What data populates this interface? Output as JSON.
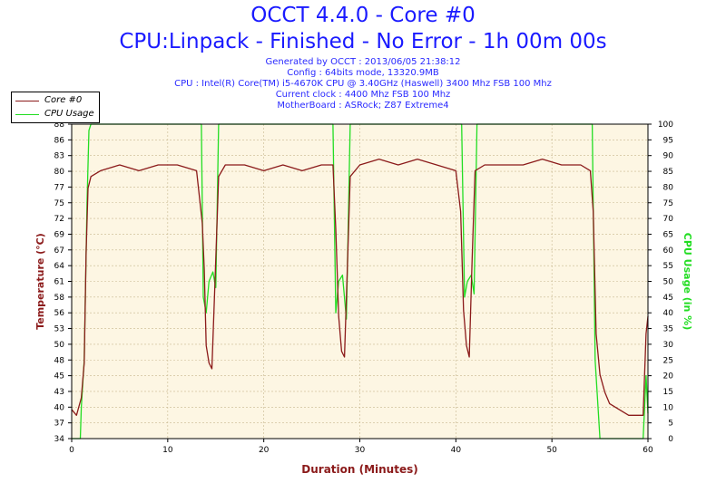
{
  "header": {
    "title": "OCCT 4.4.0 - Core #0",
    "subtitle": "CPU:Linpack - Finished - No Error - 1h 00m 00s",
    "info": [
      "Generated by OCCT : 2013/06/05 21:38:12",
      "Config : 64bits mode, 13320.9MB",
      "CPU : Intel(R) Core(TM) i5-4670K CPU @ 3.40GHz (Haswell) 3400 Mhz FSB 100 Mhz",
      "Current clock : 4400 Mhz FSB 100 Mhz",
      "MotherBoard : ASRock; Z87 Extreme4"
    ]
  },
  "colors": {
    "temperature": "#8b1a1a",
    "cpu_usage": "#22dd22",
    "plot_bg": "#fdf6e3",
    "grid": "#c8b890",
    "title": "#1a1aff"
  },
  "chart_data": {
    "type": "line",
    "title": "OCCT 4.4.0 - Core #0",
    "xlabel": "Duration (Minutes)",
    "ylabel": "Temperature (°C)",
    "y2label": "CPU Usage (in %)",
    "xlim": [
      0,
      60
    ],
    "ylim": [
      34,
      88
    ],
    "y2lim": [
      0,
      100
    ],
    "grid": true,
    "legend_position": "top-left",
    "x_ticks": [
      "0",
      "10",
      "20",
      "30",
      "40",
      "50",
      "60"
    ],
    "y_ticks": [
      "34",
      "37",
      "40",
      "43",
      "45",
      "48",
      "50",
      "53",
      "56",
      "58",
      "61",
      "64",
      "67",
      "69",
      "72",
      "75",
      "77",
      "80",
      "83",
      "86",
      "88"
    ],
    "y2_ticks": [
      "0",
      "5",
      "10",
      "15",
      "20",
      "25",
      "30",
      "35",
      "40",
      "45",
      "50",
      "55",
      "60",
      "65",
      "70",
      "75",
      "80",
      "85",
      "90",
      "95",
      "100"
    ],
    "series": [
      {
        "name": "Core #0",
        "axis": "left",
        "x": [
          0,
          0.5,
          1.0,
          1.3,
          1.5,
          1.7,
          2.0,
          3,
          5,
          7,
          9,
          11,
          13,
          13.6,
          13.8,
          14.0,
          14.3,
          14.6,
          14.9,
          15.3,
          16,
          18,
          20,
          22,
          24,
          26,
          27.2,
          27.5,
          27.8,
          28.1,
          28.4,
          28.7,
          29,
          30,
          32,
          34,
          36,
          38,
          40,
          40.5,
          40.8,
          41.1,
          41.4,
          41.7,
          42,
          43,
          45,
          47,
          49,
          51,
          53,
          54,
          54.3,
          54.6,
          55.0,
          55.5,
          56,
          57,
          58,
          59,
          59.5,
          59.8,
          60
        ],
        "y": [
          39,
          38,
          41,
          47,
          66,
          77,
          79,
          80,
          81,
          80,
          81,
          81,
          80,
          71,
          63,
          50,
          47,
          46,
          60,
          79,
          81,
          81,
          80,
          81,
          80,
          81,
          81,
          70,
          55,
          49,
          48,
          63,
          79,
          81,
          82,
          81,
          82,
          81,
          80,
          73,
          56,
          50,
          48,
          65,
          80,
          81,
          81,
          81,
          82,
          81,
          81,
          80,
          73,
          52,
          45,
          42,
          40,
          39,
          38,
          38,
          38,
          52,
          55
        ]
      },
      {
        "name": "CPU Usage",
        "axis": "right",
        "x": [
          0,
          0.9,
          1.0,
          1.3,
          1.6,
          1.8,
          2.0,
          13.5,
          13.7,
          14.0,
          14.3,
          14.7,
          15.0,
          15.3,
          27.2,
          27.5,
          27.8,
          28.2,
          28.6,
          29.0,
          40.6,
          40.9,
          41.2,
          41.6,
          41.9,
          42.2,
          54.2,
          54.5,
          55.0,
          56.0,
          58.0,
          59.5,
          59.8,
          60
        ],
        "y": [
          0,
          0,
          10,
          25,
          75,
          98,
          100,
          100,
          45,
          40,
          50,
          53,
          48,
          100,
          100,
          40,
          50,
          52,
          38,
          100,
          100,
          45,
          50,
          52,
          46,
          100,
          100,
          25,
          0,
          0,
          0,
          0,
          20,
          8
        ]
      }
    ]
  }
}
